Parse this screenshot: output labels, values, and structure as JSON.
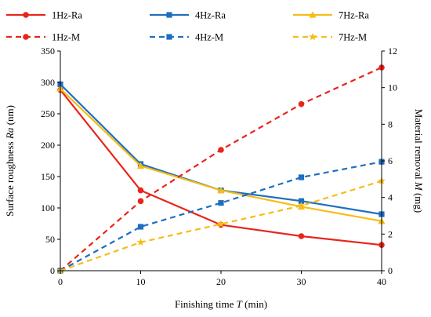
{
  "chart_data": {
    "type": "line",
    "x": [
      0,
      10,
      20,
      30,
      40
    ],
    "xlabel": {
      "prefix": "Finishing time ",
      "var": "T",
      "suffix": " (min)"
    },
    "ylabel_left": {
      "prefix": "Surface roughness ",
      "var": "Ra",
      "suffix": " (nm)"
    },
    "ylabel_right": {
      "prefix": "Material removal ",
      "var": "M",
      "suffix": " (mg)"
    },
    "xlim": [
      0,
      40
    ],
    "ylim_left": [
      0,
      350
    ],
    "ylim_right": [
      0,
      12
    ],
    "xticks": [
      "0",
      "10",
      "20",
      "30",
      "40"
    ],
    "yticks_left": [
      "0",
      "50",
      "100",
      "150",
      "200",
      "250",
      "300",
      "350"
    ],
    "yticks_right": [
      "0",
      "2",
      "4",
      "6",
      "8",
      "10",
      "12"
    ],
    "grid": false,
    "legend_position": "top",
    "series": [
      {
        "name": "1Hz-Ra",
        "axis": "left",
        "color": "#e8251b",
        "marker": "circle",
        "dash": "solid",
        "values": [
          288,
          128,
          73,
          55,
          41
        ]
      },
      {
        "name": "4Hz-Ra",
        "axis": "left",
        "color": "#1f6fc0",
        "marker": "square",
        "dash": "solid",
        "values": [
          297,
          170,
          128,
          111,
          90
        ]
      },
      {
        "name": "7Hz-Ra",
        "axis": "left",
        "color": "#f5bd16",
        "marker": "triangle",
        "dash": "solid",
        "values": [
          290,
          167,
          128,
          102,
          79
        ]
      },
      {
        "name": "1Hz-M",
        "axis": "right",
        "color": "#e8251b",
        "marker": "circle",
        "dash": "dashed",
        "values": [
          0,
          3.8,
          6.6,
          9.1,
          11.1
        ]
      },
      {
        "name": "4Hz-M",
        "axis": "right",
        "color": "#1f6fc0",
        "marker": "square",
        "dash": "dashed",
        "values": [
          0,
          2.4,
          3.7,
          5.1,
          5.95
        ]
      },
      {
        "name": "7Hz-M",
        "axis": "right",
        "color": "#f5bd16",
        "marker": "star",
        "dash": "dashed",
        "values": [
          0,
          1.55,
          2.55,
          3.55,
          4.9
        ]
      }
    ]
  }
}
